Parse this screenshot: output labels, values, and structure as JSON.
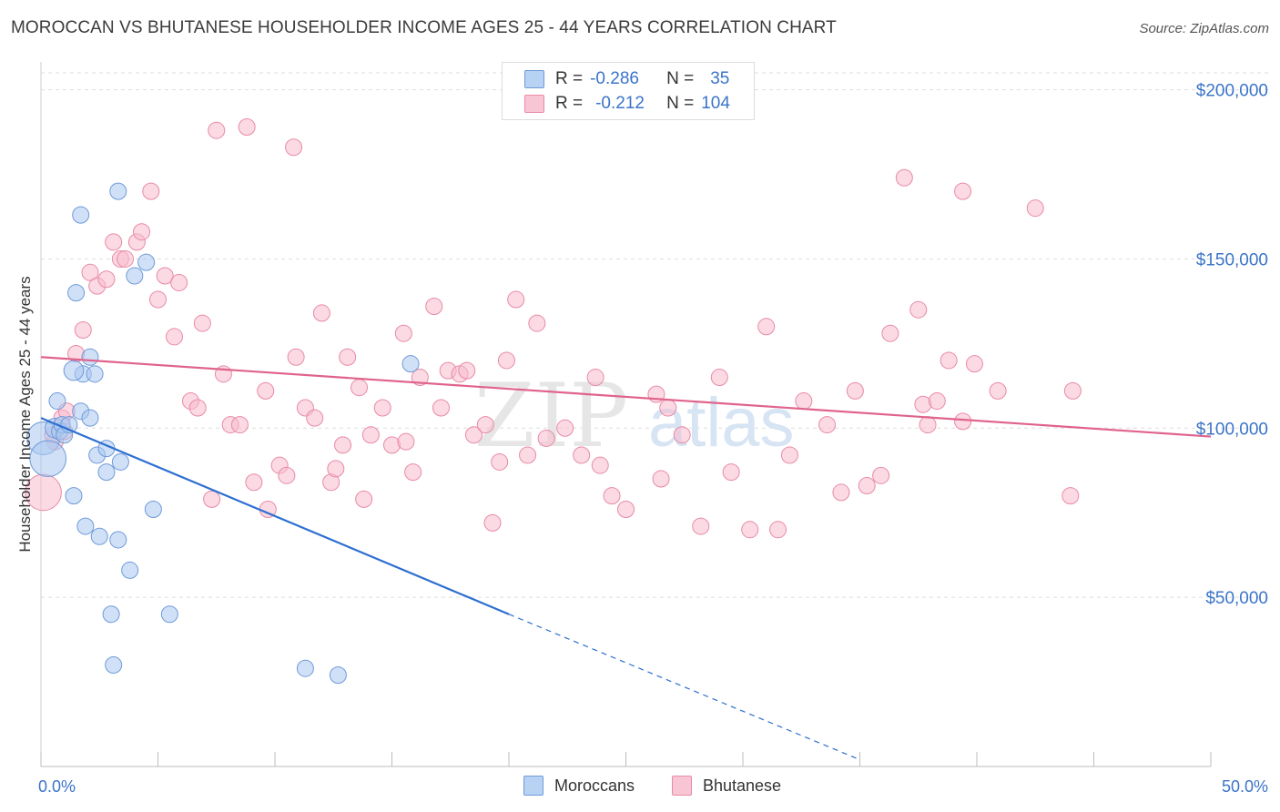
{
  "title": "MOROCCAN VS BHUTANESE HOUSEHOLDER INCOME AGES 25 - 44 YEARS CORRELATION CHART",
  "source": "Source: ZipAtlas.com",
  "watermark": "ZIPatlas",
  "legend": {
    "rows": [
      {
        "r_label": "R =",
        "r_value": "-0.286",
        "n_label": "N =",
        "n_value": "35"
      },
      {
        "r_label": "R =",
        "r_value": "-0.212",
        "n_label": "N =",
        "n_value": "104"
      }
    ]
  },
  "bottom_legend": {
    "moroccans": "Moroccans",
    "bhutanese": "Bhutanese"
  },
  "colors": {
    "moroccans_fill": "#a9c8f0",
    "moroccans_stroke": "#6f9ad9",
    "moroccans_line": "#2d6fd1",
    "bhutanese_fill": "#f7bccd",
    "bhutanese_stroke": "#e88aa6",
    "bhutanese_line": "#e0638c",
    "tick_label": "#3a74c9"
  },
  "chart_data": {
    "type": "scatter",
    "title": "MOROCCAN VS BHUTANESE HOUSEHOLDER INCOME AGES 25 - 44 YEARS CORRELATION CHART",
    "xlabel": "",
    "ylabel": "Householder Income Ages 25 - 44 years",
    "xlim": [
      0,
      50
    ],
    "ylim": [
      0,
      205000
    ],
    "x_tick_labels": [
      "0.0%",
      "50.0%"
    ],
    "y_ticks": [
      {
        "value": 50000,
        "label": "$50,000"
      },
      {
        "value": 100000,
        "label": "$100,000"
      },
      {
        "value": 150000,
        "label": "$150,000"
      },
      {
        "value": 200000,
        "label": "$200,000"
      }
    ],
    "grid": true,
    "legend_position": "top-center",
    "series": [
      {
        "name": "Moroccans",
        "points": [
          [
            0.1,
            97000,
            20
          ],
          [
            0.3,
            91000,
            22
          ],
          [
            0.6,
            100000,
            12
          ],
          [
            0.8,
            99000,
            10
          ],
          [
            0.9,
            101000,
            10
          ],
          [
            1.0,
            98000,
            10
          ],
          [
            1.2,
            101000,
            10
          ],
          [
            0.7,
            108000,
            10
          ],
          [
            1.4,
            80000,
            10
          ],
          [
            1.8,
            116000,
            10
          ],
          [
            1.4,
            117000,
            12
          ],
          [
            2.1,
            121000,
            10
          ],
          [
            2.3,
            116000,
            10
          ],
          [
            1.5,
            140000,
            10
          ],
          [
            1.7,
            163000,
            10
          ],
          [
            3.3,
            170000,
            10
          ],
          [
            4.5,
            149000,
            10
          ],
          [
            4.0,
            145000,
            10
          ],
          [
            1.7,
            105000,
            10
          ],
          [
            2.1,
            103000,
            10
          ],
          [
            2.4,
            92000,
            10
          ],
          [
            2.8,
            94000,
            10
          ],
          [
            2.8,
            87000,
            10
          ],
          [
            3.4,
            90000,
            10
          ],
          [
            1.9,
            71000,
            10
          ],
          [
            2.5,
            68000,
            10
          ],
          [
            3.3,
            67000,
            10
          ],
          [
            4.8,
            76000,
            10
          ],
          [
            3.8,
            58000,
            10
          ],
          [
            3.0,
            45000,
            10
          ],
          [
            5.5,
            45000,
            10
          ],
          [
            3.1,
            30000,
            10
          ],
          [
            11.3,
            29000,
            10
          ],
          [
            12.7,
            27000,
            10
          ],
          [
            15.8,
            119000,
            10
          ]
        ]
      },
      {
        "name": "Bhutanese",
        "points": [
          [
            0.1,
            81000,
            22
          ],
          [
            0.6,
            96000,
            10
          ],
          [
            0.9,
            103000,
            10
          ],
          [
            1.1,
            105000,
            10
          ],
          [
            1.5,
            122000,
            10
          ],
          [
            1.8,
            129000,
            10
          ],
          [
            2.1,
            146000,
            10
          ],
          [
            2.4,
            142000,
            10
          ],
          [
            2.8,
            144000,
            10
          ],
          [
            3.1,
            155000,
            10
          ],
          [
            3.4,
            150000,
            10
          ],
          [
            3.6,
            150000,
            10
          ],
          [
            4.1,
            155000,
            10
          ],
          [
            4.3,
            158000,
            10
          ],
          [
            4.7,
            170000,
            10
          ],
          [
            5.0,
            138000,
            10
          ],
          [
            5.3,
            145000,
            10
          ],
          [
            5.7,
            127000,
            10
          ],
          [
            5.9,
            143000,
            10
          ],
          [
            6.4,
            108000,
            10
          ],
          [
            6.7,
            106000,
            10
          ],
          [
            6.9,
            131000,
            10
          ],
          [
            7.3,
            79000,
            10
          ],
          [
            7.5,
            188000,
            10
          ],
          [
            7.8,
            116000,
            10
          ],
          [
            8.1,
            101000,
            10
          ],
          [
            8.5,
            101000,
            10
          ],
          [
            8.8,
            189000,
            10
          ],
          [
            9.1,
            84000,
            10
          ],
          [
            9.6,
            111000,
            10
          ],
          [
            9.7,
            76000,
            10
          ],
          [
            10.2,
            89000,
            10
          ],
          [
            10.5,
            86000,
            10
          ],
          [
            10.8,
            183000,
            10
          ],
          [
            10.9,
            121000,
            10
          ],
          [
            11.3,
            106000,
            10
          ],
          [
            11.7,
            103000,
            10
          ],
          [
            12.0,
            134000,
            10
          ],
          [
            12.4,
            84000,
            10
          ],
          [
            12.6,
            88000,
            10
          ],
          [
            12.9,
            95000,
            10
          ],
          [
            13.1,
            121000,
            10
          ],
          [
            13.6,
            112000,
            10
          ],
          [
            13.8,
            79000,
            10
          ],
          [
            14.1,
            98000,
            10
          ],
          [
            14.6,
            106000,
            10
          ],
          [
            15.0,
            95000,
            10
          ],
          [
            15.6,
            96000,
            10
          ],
          [
            15.9,
            87000,
            10
          ],
          [
            15.5,
            128000,
            10
          ],
          [
            16.2,
            115000,
            10
          ],
          [
            16.8,
            136000,
            10
          ],
          [
            17.1,
            106000,
            10
          ],
          [
            17.4,
            117000,
            10
          ],
          [
            17.9,
            116000,
            10
          ],
          [
            18.2,
            117000,
            10
          ],
          [
            18.5,
            98000,
            10
          ],
          [
            19.0,
            101000,
            10
          ],
          [
            19.3,
            72000,
            10
          ],
          [
            19.6,
            90000,
            10
          ],
          [
            19.9,
            120000,
            10
          ],
          [
            20.3,
            138000,
            10
          ],
          [
            20.8,
            92000,
            10
          ],
          [
            21.2,
            131000,
            10
          ],
          [
            21.6,
            97000,
            10
          ],
          [
            22.4,
            100000,
            10
          ],
          [
            23.1,
            92000,
            10
          ],
          [
            23.7,
            115000,
            10
          ],
          [
            23.9,
            89000,
            10
          ],
          [
            24.4,
            80000,
            10
          ],
          [
            25.0,
            76000,
            10
          ],
          [
            26.3,
            110000,
            10
          ],
          [
            26.5,
            85000,
            10
          ],
          [
            26.8,
            106000,
            10
          ],
          [
            27.4,
            98000,
            10
          ],
          [
            28.2,
            71000,
            10
          ],
          [
            29.0,
            115000,
            10
          ],
          [
            29.5,
            87000,
            10
          ],
          [
            30.3,
            70000,
            10
          ],
          [
            31.0,
            130000,
            10
          ],
          [
            31.5,
            70000,
            10
          ],
          [
            32.0,
            92000,
            10
          ],
          [
            32.6,
            108000,
            10
          ],
          [
            33.6,
            101000,
            10
          ],
          [
            34.2,
            81000,
            10
          ],
          [
            34.8,
            111000,
            10
          ],
          [
            35.3,
            83000,
            10
          ],
          [
            35.9,
            86000,
            10
          ],
          [
            36.3,
            128000,
            10
          ],
          [
            36.9,
            174000,
            10
          ],
          [
            37.5,
            135000,
            10
          ],
          [
            37.7,
            107000,
            10
          ],
          [
            37.9,
            101000,
            10
          ],
          [
            38.3,
            108000,
            10
          ],
          [
            38.8,
            120000,
            10
          ],
          [
            39.4,
            170000,
            10
          ],
          [
            39.4,
            102000,
            10
          ],
          [
            39.9,
            119000,
            10
          ],
          [
            40.9,
            111000,
            10
          ],
          [
            42.5,
            165000,
            10
          ],
          [
            44.1,
            111000,
            10
          ],
          [
            44.0,
            80000,
            10
          ],
          [
            1.0,
            99000,
            10
          ],
          [
            0.5,
            98000,
            10
          ]
        ]
      }
    ],
    "trendlines": [
      {
        "series": "Moroccans",
        "x": [
          0,
          20
        ],
        "y": [
          103000,
          45000
        ],
        "extended_to": [
          35,
          2000
        ]
      },
      {
        "series": "Bhutanese",
        "x": [
          0,
          50
        ],
        "y": [
          121000,
          97500
        ]
      }
    ]
  }
}
